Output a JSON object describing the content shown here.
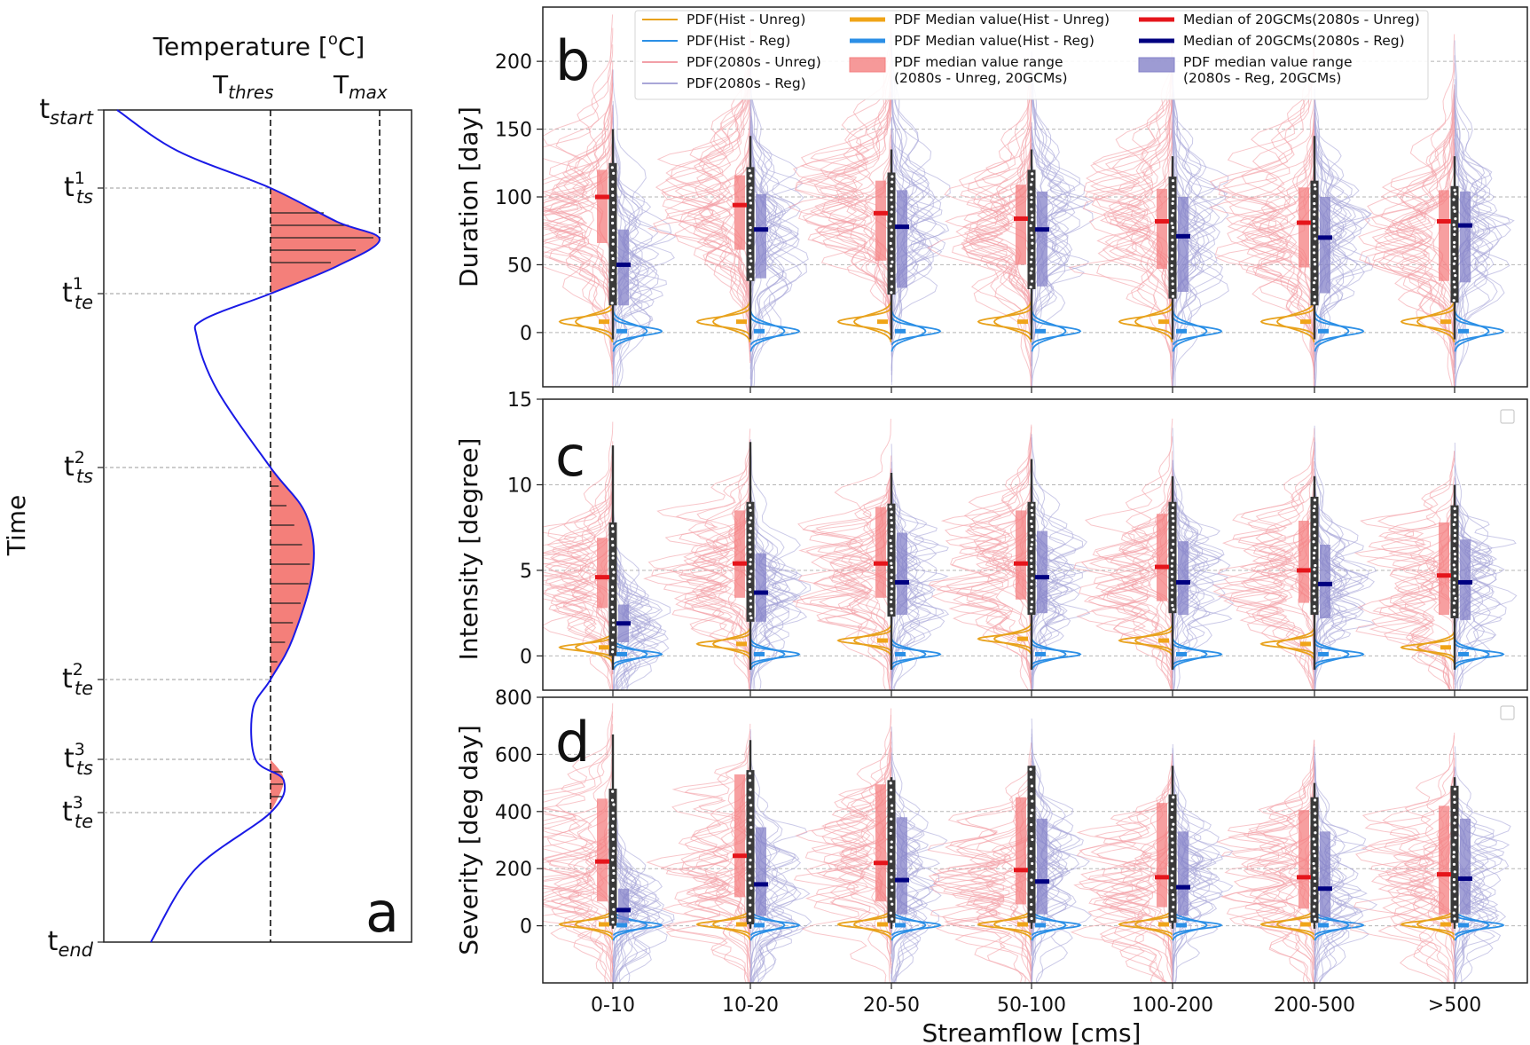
{
  "panel_a": {
    "letter": "a",
    "top_label": "Temperature [",
    "top_label_sup": "o",
    "top_label_end": "C]",
    "y_label": "Time",
    "t_thres": {
      "base": "T",
      "sub": "thres"
    },
    "t_max": {
      "base": "T",
      "sub": "max"
    },
    "time_ticks": [
      {
        "base": "t",
        "sub": "start",
        "sup": ""
      },
      {
        "base": "t",
        "sub": "ts",
        "sup": "1"
      },
      {
        "base": "t",
        "sub": "te",
        "sup": "1"
      },
      {
        "base": "t",
        "sub": "ts",
        "sup": "2"
      },
      {
        "base": "t",
        "sub": "te",
        "sup": "2"
      },
      {
        "base": "t",
        "sub": "ts",
        "sup": "3"
      },
      {
        "base": "t",
        "sub": "te",
        "sup": "3"
      },
      {
        "base": "t",
        "sub": "end",
        "sup": ""
      }
    ]
  },
  "legend": [
    {
      "label": "PDF(Hist - Unreg)",
      "kind": "thin",
      "color": "#e8a21c"
    },
    {
      "label": "PDF(Hist - Reg)",
      "kind": "thin",
      "color": "#2b8fe6"
    },
    {
      "label": "PDF(2080s - Unreg)",
      "kind": "thin",
      "color": "#f2a0a8"
    },
    {
      "label": "PDF(2080s - Reg)",
      "kind": "thin",
      "color": "#a9a6d8"
    },
    {
      "label": "PDF Median value(Hist - Unreg)",
      "kind": "thick",
      "color": "#f0a418"
    },
    {
      "label": "PDF Median value(Hist - Reg)",
      "kind": "thick",
      "color": "#2b8fe6"
    },
    {
      "label": "PDF median value range",
      "label2": "(2080s - Unreg, 20GCMs)",
      "kind": "patch",
      "color": "#f47f80"
    },
    {
      "label": "Median of 20GCMs(2080s - Unreg)",
      "kind": "thick",
      "color": "#e5151b"
    },
    {
      "label": "Median of 20GCMs(2080s - Reg)",
      "kind": "thick",
      "color": "#000080"
    },
    {
      "label": "PDF median value range",
      "label2": "(2080s - Reg, 20GCMs)",
      "kind": "patch",
      "color": "#8482c8"
    }
  ],
  "chart_data": [
    {
      "type": "violin",
      "panel": "b",
      "ylabel": "Duration [day]",
      "ylim": [
        -40,
        240
      ],
      "yticks": [
        0,
        50,
        100,
        150,
        200
      ],
      "categories": [
        "0-10",
        "10-20",
        "20-50",
        "50-100",
        "100-200",
        "200-500",
        ">500"
      ],
      "median_2080s_unreg": [
        100,
        94,
        88,
        84,
        82,
        81,
        82
      ],
      "median_2080s_reg": [
        50,
        76,
        78,
        76,
        71,
        70,
        79
      ],
      "range_2080s_unreg": [
        [
          66,
          120
        ],
        [
          61,
          116
        ],
        [
          53,
          112
        ],
        [
          50,
          109
        ],
        [
          47,
          106
        ],
        [
          48,
          107
        ],
        [
          38,
          105
        ]
      ],
      "range_2080s_reg": [
        [
          20,
          76
        ],
        [
          40,
          102
        ],
        [
          33,
          105
        ],
        [
          34,
          104
        ],
        [
          30,
          100
        ],
        [
          29,
          100
        ],
        [
          37,
          104
        ]
      ],
      "median_hist_unreg": [
        8,
        8,
        8,
        8,
        8,
        8,
        8
      ],
      "median_hist_reg": [
        1,
        1,
        1,
        1,
        1,
        1,
        1
      ],
      "whisker": [
        [
          -5,
          150
        ],
        [
          -5,
          145
        ],
        [
          -5,
          135
        ],
        [
          -5,
          135
        ],
        [
          -5,
          130
        ],
        [
          -5,
          145
        ],
        [
          -5,
          130
        ]
      ],
      "iqr": [
        [
          20,
          125
        ],
        [
          38,
          122
        ],
        [
          28,
          118
        ],
        [
          32,
          120
        ],
        [
          25,
          115
        ],
        [
          20,
          112
        ],
        [
          22,
          108
        ]
      ]
    },
    {
      "type": "violin",
      "panel": "c",
      "ylabel": "Intensity [degree]",
      "ylim": [
        -2,
        15
      ],
      "yticks": [
        0,
        5,
        10,
        15
      ],
      "categories": [
        "0-10",
        "10-20",
        "20-50",
        "50-100",
        "100-200",
        "200-500",
        ">500"
      ],
      "median_2080s_unreg": [
        4.6,
        5.4,
        5.4,
        5.4,
        5.2,
        5.0,
        4.7
      ],
      "median_2080s_reg": [
        1.9,
        3.7,
        4.3,
        4.6,
        4.3,
        4.2,
        4.3
      ],
      "range_2080s_unreg": [
        [
          2.8,
          6.9
        ],
        [
          3.4,
          8.5
        ],
        [
          3.4,
          8.7
        ],
        [
          3.3,
          8.5
        ],
        [
          3.2,
          8.3
        ],
        [
          3.1,
          7.9
        ],
        [
          2.4,
          7.8
        ]
      ],
      "range_2080s_reg": [
        [
          0.8,
          3.0
        ],
        [
          2.0,
          6.0
        ],
        [
          2.4,
          7.2
        ],
        [
          2.5,
          7.3
        ],
        [
          2.4,
          6.7
        ],
        [
          2.2,
          6.5
        ],
        [
          2.1,
          6.8
        ]
      ],
      "median_hist_unreg": [
        0.5,
        0.7,
        0.9,
        1.0,
        0.9,
        0.7,
        0.5
      ],
      "median_hist_reg": [
        0.1,
        0.1,
        0.1,
        0.1,
        0.1,
        0.1,
        0.1
      ],
      "whisker": [
        [
          -0.8,
          12.3
        ],
        [
          -0.8,
          12.5
        ],
        [
          -0.8,
          10.7
        ],
        [
          -0.8,
          11.5
        ],
        [
          -0.8,
          10.5
        ],
        [
          -0.8,
          10.5
        ],
        [
          -0.8,
          10.0
        ]
      ],
      "iqr": [
        [
          0.0,
          7.8
        ],
        [
          2.0,
          9.0
        ],
        [
          2.3,
          8.9
        ],
        [
          2.4,
          9.0
        ],
        [
          2.5,
          9.0
        ],
        [
          2.4,
          9.3
        ],
        [
          2.2,
          8.8
        ]
      ]
    },
    {
      "type": "violin",
      "panel": "d",
      "ylabel": "Severity [deg day]",
      "ylim": [
        -200,
        800
      ],
      "yticks": [
        0,
        200,
        400,
        600,
        800
      ],
      "categories": [
        "0-10",
        "10-20",
        "20-50",
        "50-100",
        "100-200",
        "200-500",
        ">500"
      ],
      "median_2080s_unreg": [
        225,
        245,
        220,
        195,
        170,
        170,
        180
      ],
      "median_2080s_reg": [
        55,
        145,
        160,
        155,
        135,
        130,
        165
      ],
      "range_2080s_unreg": [
        [
          85,
          445
        ],
        [
          100,
          530
        ],
        [
          85,
          495
        ],
        [
          75,
          450
        ],
        [
          65,
          430
        ],
        [
          60,
          405
        ],
        [
          40,
          420
        ]
      ],
      "range_2080s_reg": [
        [
          10,
          130
        ],
        [
          35,
          345
        ],
        [
          40,
          380
        ],
        [
          40,
          375
        ],
        [
          35,
          330
        ],
        [
          30,
          330
        ],
        [
          40,
          375
        ]
      ],
      "median_hist_unreg": [
        5,
        5,
        5,
        5,
        5,
        5,
        5
      ],
      "median_hist_reg": [
        2,
        2,
        2,
        2,
        2,
        2,
        2
      ],
      "whisker": [
        [
          -10,
          670
        ],
        [
          -10,
          650
        ],
        [
          -10,
          520
        ],
        [
          -10,
          560
        ],
        [
          -10,
          560
        ],
        [
          -10,
          500
        ],
        [
          -10,
          520
        ]
      ],
      "iqr": [
        [
          0,
          480
        ],
        [
          5,
          545
        ],
        [
          10,
          510
        ],
        [
          10,
          560
        ],
        [
          10,
          460
        ],
        [
          10,
          450
        ],
        [
          10,
          490
        ]
      ]
    }
  ],
  "xlabel": "Streamflow [cms]"
}
